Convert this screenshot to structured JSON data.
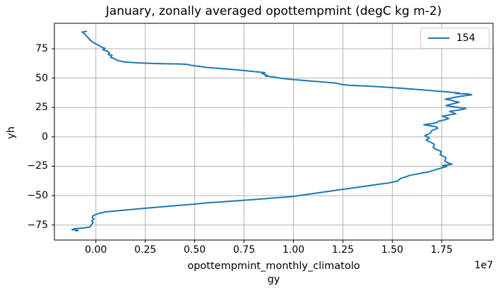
{
  "title": "January, zonally averaged opottempmint (degC kg m-2)",
  "legend": {
    "label": "154",
    "line_color": "#1f77b4"
  },
  "axes": {
    "ylabel": "yh",
    "xlabel_line1": "opottempmint_monthly_climatolo",
    "xlabel_line2": "gy",
    "offset_text": "1e7",
    "x_tick_labels": [
      "0.00",
      "0.25",
      "0.50",
      "0.75",
      "1.00",
      "1.25",
      "1.50",
      "1.75"
    ],
    "y_tick_labels": [
      "75",
      "50",
      "25",
      "0",
      "−25",
      "−50",
      "−75"
    ]
  },
  "colors": {
    "line": "#1f77b4",
    "grid": "#b0b0b0",
    "spine": "#000000",
    "background": "#ffffff"
  },
  "chart_data": {
    "type": "line",
    "title": "January, zonally averaged opottempmint (degC kg m-2)",
    "xlabel": "opottempmint_monthly_climatology",
    "ylabel": "yh",
    "x_offset_scale": 10000000,
    "x_tick_values": [
      0,
      0.25,
      0.5,
      0.75,
      1.0,
      1.25,
      1.5,
      1.75
    ],
    "y_tick_values": [
      75,
      50,
      25,
      0,
      -25,
      -50,
      -75
    ],
    "xlim": [
      -0.21,
      2.01
    ],
    "ylim": [
      -87.8,
      96.6
    ],
    "grid": true,
    "legend_position": "upper right",
    "series": [
      {
        "name": "154",
        "color": "#1f77b4",
        "note": "x values in units of 1e7 degC kg m-2, y values are latitude yh",
        "points": [
          [
            -0.048,
            89.8
          ],
          [
            -0.07,
            89.2
          ],
          [
            -0.06,
            88.0
          ],
          [
            -0.049,
            86.0
          ],
          [
            -0.037,
            83.8
          ],
          [
            -0.026,
            81.8
          ],
          [
            -0.008,
            79.8
          ],
          [
            0.01,
            78.2
          ],
          [
            0.028,
            76.4
          ],
          [
            0.046,
            75.2
          ],
          [
            0.036,
            74.0
          ],
          [
            0.058,
            72.8
          ],
          [
            0.07,
            71.4
          ],
          [
            0.062,
            70.0
          ],
          [
            0.082,
            69.3
          ],
          [
            0.074,
            67.8
          ],
          [
            0.094,
            66.4
          ],
          [
            0.112,
            64.8
          ],
          [
            0.148,
            63.6
          ],
          [
            0.215,
            62.9
          ],
          [
            0.32,
            62.3
          ],
          [
            0.43,
            62.0
          ],
          [
            0.462,
            61.6
          ],
          [
            0.48,
            60.9
          ],
          [
            0.52,
            60.0
          ],
          [
            0.565,
            59.0
          ],
          [
            0.64,
            58.0
          ],
          [
            0.685,
            57.4
          ],
          [
            0.75,
            56.4
          ],
          [
            0.8,
            55.5
          ],
          [
            0.855,
            54.6
          ],
          [
            0.84,
            54.0
          ],
          [
            0.865,
            52.6
          ],
          [
            0.857,
            51.8
          ],
          [
            0.895,
            51.0
          ],
          [
            0.945,
            49.7
          ],
          [
            1.0,
            48.7
          ],
          [
            1.08,
            47.6
          ],
          [
            1.16,
            46.5
          ],
          [
            1.218,
            45.7
          ],
          [
            1.235,
            44.7
          ],
          [
            1.28,
            43.9
          ],
          [
            1.42,
            42.8
          ],
          [
            1.56,
            41.2
          ],
          [
            1.7,
            39.3
          ],
          [
            1.8,
            37.9
          ],
          [
            1.84,
            37.3
          ],
          [
            1.82,
            36.9
          ],
          [
            1.888,
            36.4
          ],
          [
            1.902,
            35.8
          ],
          [
            1.84,
            34.4
          ],
          [
            1.795,
            33.0
          ],
          [
            1.768,
            32.0
          ],
          [
            1.792,
            31.4
          ],
          [
            1.812,
            30.4
          ],
          [
            1.838,
            29.4
          ],
          [
            1.8,
            27.9
          ],
          [
            1.772,
            26.6
          ],
          [
            1.812,
            25.5
          ],
          [
            1.872,
            24.2
          ],
          [
            1.858,
            23.4
          ],
          [
            1.79,
            21.7
          ],
          [
            1.822,
            19.6
          ],
          [
            1.754,
            17.6
          ],
          [
            1.786,
            15.6
          ],
          [
            1.76,
            14.2
          ],
          [
            1.732,
            13.2
          ],
          [
            1.724,
            11.9
          ],
          [
            1.66,
            10.2
          ],
          [
            1.7,
            9.2
          ],
          [
            1.726,
            8.3
          ],
          [
            1.73,
            7.2
          ],
          [
            1.7,
            5.4
          ],
          [
            1.694,
            3.4
          ],
          [
            1.68,
            2.1
          ],
          [
            1.665,
            0.9
          ],
          [
            1.688,
            -0.9
          ],
          [
            1.671,
            -2.8
          ],
          [
            1.692,
            -4.4
          ],
          [
            1.713,
            -6.3
          ],
          [
            1.707,
            -8.8
          ],
          [
            1.722,
            -10.6
          ],
          [
            1.748,
            -12.4
          ],
          [
            1.742,
            -15.2
          ],
          [
            1.772,
            -17.6
          ],
          [
            1.766,
            -20.6
          ],
          [
            1.784,
            -22.3
          ],
          [
            1.802,
            -23.3
          ],
          [
            1.754,
            -24.5
          ],
          [
            1.776,
            -25.3
          ],
          [
            1.748,
            -26.5
          ],
          [
            1.724,
            -27.7
          ],
          [
            1.683,
            -29.9
          ],
          [
            1.653,
            -30.7
          ],
          [
            1.62,
            -31.8
          ],
          [
            1.588,
            -32.7
          ],
          [
            1.57,
            -34.0
          ],
          [
            1.546,
            -35.2
          ],
          [
            1.536,
            -36.1
          ],
          [
            1.528,
            -37.4
          ],
          [
            1.498,
            -38.6
          ],
          [
            1.48,
            -39.3
          ],
          [
            1.44,
            -40.1
          ],
          [
            1.409,
            -40.9
          ],
          [
            1.33,
            -42.8
          ],
          [
            1.248,
            -44.7
          ],
          [
            1.15,
            -47.0
          ],
          [
            1.05,
            -49.4
          ],
          [
            0.998,
            -50.8
          ],
          [
            0.9,
            -52.0
          ],
          [
            0.8,
            -53.3
          ],
          [
            0.7,
            -54.5
          ],
          [
            0.62,
            -55.5
          ],
          [
            0.564,
            -56.1
          ],
          [
            0.498,
            -57.2
          ],
          [
            0.4,
            -58.6
          ],
          [
            0.3,
            -60.0
          ],
          [
            0.248,
            -60.8
          ],
          [
            0.15,
            -62.3
          ],
          [
            0.052,
            -63.8
          ],
          [
            0.016,
            -65.1
          ],
          [
            0.004,
            -65.8
          ],
          [
            -0.014,
            -67.0
          ],
          [
            -0.018,
            -68.6
          ],
          [
            -0.01,
            -70.0
          ],
          [
            -0.02,
            -71.6
          ],
          [
            -0.014,
            -73.0
          ],
          [
            -0.022,
            -74.6
          ],
          [
            -0.026,
            -75.8
          ],
          [
            -0.031,
            -76.8
          ],
          [
            -0.067,
            -77.6
          ],
          [
            -0.109,
            -78.2
          ],
          [
            -0.121,
            -78.9
          ],
          [
            -0.091,
            -79.6
          ],
          [
            -0.1,
            -80.1
          ]
        ]
      }
    ]
  }
}
